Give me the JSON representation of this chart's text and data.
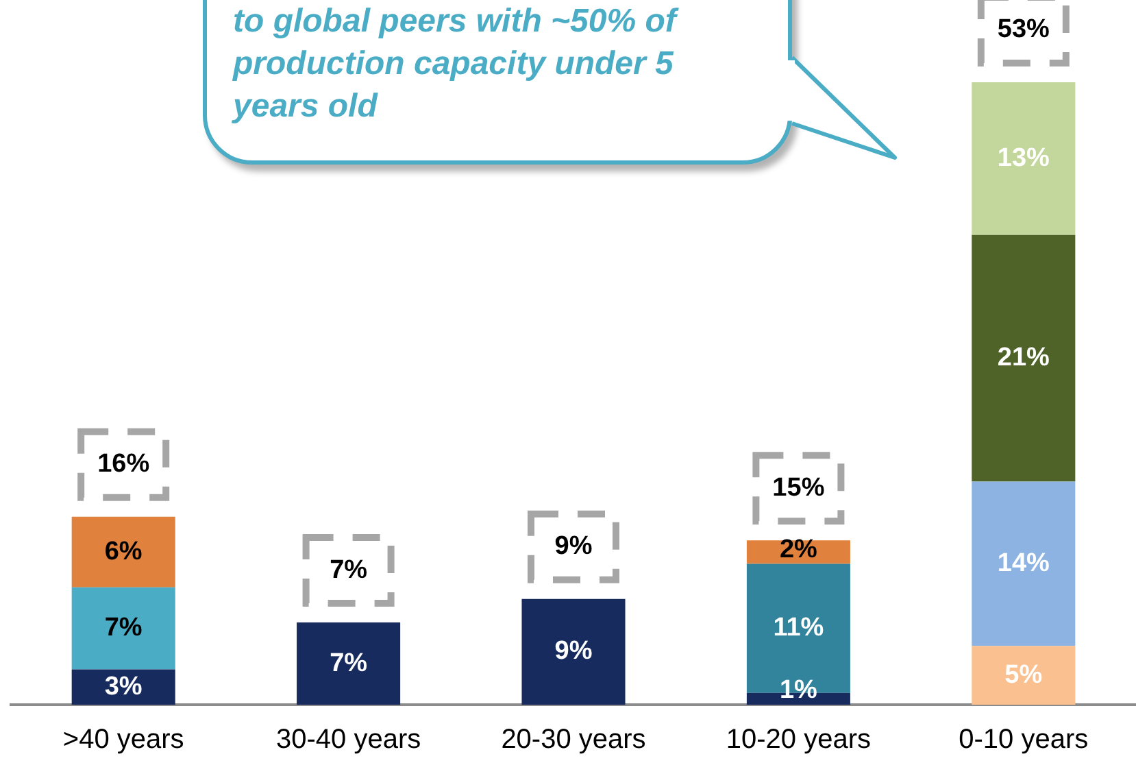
{
  "chart_data": {
    "type": "bar",
    "stacked": true,
    "categories": [
      ">40 years",
      "30-40 years",
      "20-30 years",
      "10-20 years",
      "0-10 years"
    ],
    "tick_labels": "x",
    "grid": false,
    "legend": false,
    "series": [
      {
        "color": "#172b5f",
        "values": [
          3,
          7,
          9,
          1,
          null
        ],
        "value_labels": [
          "3%",
          "7%",
          "9%",
          "1%",
          null
        ]
      },
      {
        "color": "#fac090",
        "values": [
          null,
          null,
          null,
          null,
          5
        ],
        "value_labels": [
          null,
          null,
          null,
          null,
          "5%"
        ]
      },
      {
        "color": "#4bacc6",
        "values": [
          7,
          null,
          null,
          null,
          null
        ],
        "value_labels": [
          "7%",
          null,
          null,
          null,
          null
        ]
      },
      {
        "color": "#31849b",
        "values": [
          null,
          null,
          null,
          11,
          null
        ],
        "value_labels": [
          null,
          null,
          null,
          "11%",
          null
        ]
      },
      {
        "color": "#8db3e2",
        "values": [
          null,
          null,
          null,
          null,
          14
        ],
        "value_labels": [
          null,
          null,
          null,
          null,
          "14%"
        ]
      },
      {
        "color": "#4f6228",
        "values": [
          null,
          null,
          null,
          null,
          21
        ],
        "value_labels": [
          null,
          null,
          null,
          null,
          "21%"
        ]
      },
      {
        "color": "#e0823d",
        "values": [
          6,
          null,
          null,
          2,
          null
        ],
        "value_labels": [
          "6%",
          null,
          null,
          "2%",
          null
        ]
      },
      {
        "color": "#c3d69b",
        "values": [
          null,
          null,
          null,
          null,
          13
        ],
        "value_labels": [
          null,
          null,
          null,
          null,
          "13%"
        ]
      }
    ],
    "totals": [
      "16%",
      "7%",
      "9%",
      "15%",
      "53%"
    ],
    "annotations": [
      "to global peers with ~50% of production capacity under 5 years old"
    ]
  }
}
